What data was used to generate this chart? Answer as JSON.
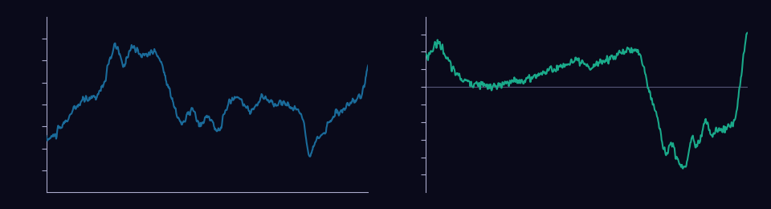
{
  "background_color": "#0a0a1a",
  "line_color_left": "#1a6b9a",
  "line_color_right": "#1aaa8a",
  "zero_line_color": "#555577",
  "axis_color": "#aaaacc",
  "tick_color": "#aaaacc",
  "left_ylim": [
    -20,
    140
  ],
  "right_ylim": [
    -120,
    80
  ],
  "left_yticks": [
    0,
    20,
    40,
    60,
    80,
    100,
    120
  ],
  "right_yticks": [
    -100,
    -80,
    -60,
    -40,
    -20,
    0,
    20,
    40,
    60
  ],
  "n_points": 650,
  "line_width": 1.5,
  "figsize": [
    9.6,
    2.6
  ],
  "dpi": 100
}
